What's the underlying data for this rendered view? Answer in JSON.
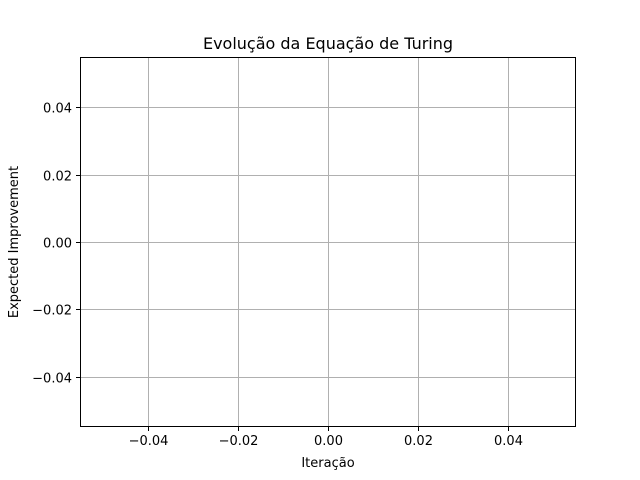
{
  "chart_data": {
    "type": "line",
    "title": "Evolução da Equação de Turing",
    "xlabel": "Iteração",
    "ylabel": "Expected Improvement",
    "xlim": [
      -0.055,
      0.055
    ],
    "ylim": [
      -0.055,
      0.055
    ],
    "x_ticks": [
      -0.04,
      -0.02,
      0.0,
      0.02,
      0.04
    ],
    "y_ticks": [
      -0.04,
      -0.02,
      0.0,
      0.02,
      0.04
    ],
    "x_tick_labels": [
      "−0.04",
      "−0.02",
      "0.00",
      "0.02",
      "0.04"
    ],
    "y_tick_labels": [
      "−0.04",
      "−0.02",
      "0.00",
      "0.02",
      "0.04"
    ],
    "grid": true,
    "series": [
      {
        "x": [],
        "y": []
      }
    ]
  }
}
